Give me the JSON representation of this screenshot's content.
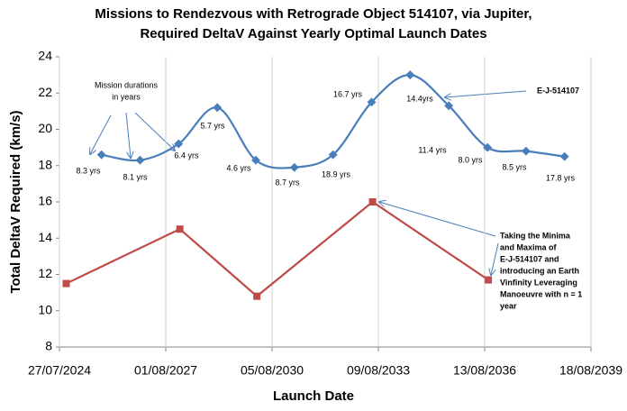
{
  "chart_data": {
    "type": "line",
    "title": [
      "Missions to Rendezvous with Retrograde Object 514107, via Jupiter,",
      "Required DeltaV Against Yearly Optimal Launch Dates"
    ],
    "x_label": "Launch Date",
    "y_label": "Total DeltaV Required (km/s)",
    "xlim": [
      "2024-07-27",
      "2039-08-18"
    ],
    "xticks": [
      {
        "value": "2024-07-27",
        "label": "27/07/2024"
      },
      {
        "value": "2027-08-01",
        "label": "01/08/2027"
      },
      {
        "value": "2030-08-05",
        "label": "05/08/2030"
      },
      {
        "value": "2033-08-09",
        "label": "09/08/2033"
      },
      {
        "value": "2036-08-13",
        "label": "13/08/2036"
      },
      {
        "value": "2039-08-18",
        "label": "18/08/2039"
      }
    ],
    "ylim": [
      8,
      24
    ],
    "yticks": [
      8,
      10,
      12,
      14,
      16,
      18,
      20,
      22,
      24
    ],
    "grid": true,
    "series": [
      {
        "name": "E-J-514107",
        "color": "#4a7ebb",
        "smooth": true,
        "x": [
          "2025-10-05",
          "2026-11-08",
          "2027-12-12",
          "2029-01-15",
          "2030-02-18",
          "2031-03-24",
          "2032-04-27",
          "2033-05-31",
          "2034-07-04",
          "2035-08-08",
          "2036-09-11",
          "2037-10-15",
          "2038-11-18"
        ],
        "values": [
          18.6,
          18.3,
          19.2,
          21.2,
          18.3,
          17.9,
          18.6,
          21.5,
          23.0,
          21.3,
          19.0,
          18.8,
          18.5
        ],
        "point_labels": [
          "8.3 yrs",
          "8.1 yrs",
          "6.4 yrs",
          "5.7 yrs",
          "4.6 yrs",
          "8.7 yrs",
          "18.9 yrs",
          "16.7 yrs",
          "14.4yrs",
          "11.4 yrs",
          "8.0 yrs",
          "8.5 yrs",
          "17.8 yrs"
        ]
      },
      {
        "color": "#be4b48",
        "smooth": false,
        "x": [
          "2024-10-05",
          "2027-12-25",
          "2030-03-01",
          "2033-06-10",
          "2036-09-20"
        ],
        "values": [
          11.5,
          14.5,
          10.8,
          16.0,
          11.7
        ]
      }
    ],
    "annotations": {
      "durations": [
        "Mission durations",
        "in years"
      ],
      "note": [
        "Taking the Minima",
        "and Maxima of",
        "E-J-514107 and",
        "introducing an Earth",
        "Vinfinity Leveraging",
        "Manoeuvre with n = 1",
        "year"
      ]
    }
  }
}
